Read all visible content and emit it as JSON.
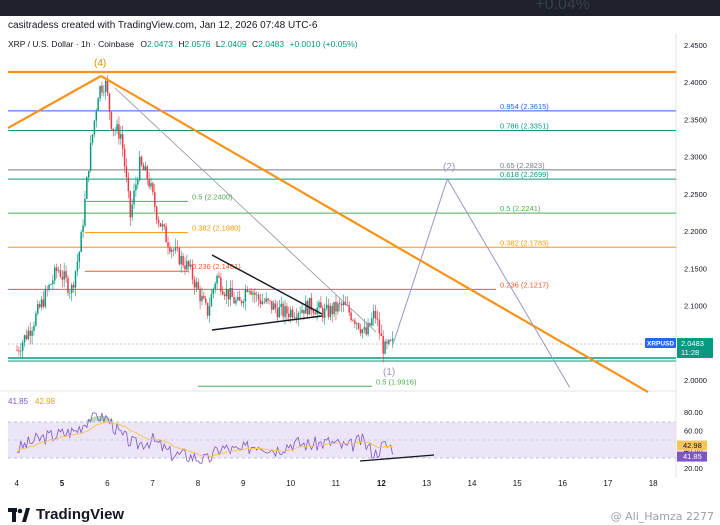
{
  "topbar_ghost_text": "+0.04%",
  "credit": "casitradess created with TradingView.com, Jan 12, 2026 07:48 UTC-6",
  "legend": {
    "symbol": "XRP / U.S. Dollar · 1h · Coinbase",
    "open_label": "O",
    "open": "2.0473",
    "high_label": "H",
    "high": "2.0576",
    "low_label": "L",
    "low": "2.0409",
    "close_label": "C",
    "close": "2.0483",
    "change": "+0.0010 (+0.05%)"
  },
  "price_axis": {
    "ticks": [
      "2.4500",
      "2.4000",
      "2.3500",
      "2.3000",
      "2.2500",
      "2.2000",
      "2.1500",
      "2.1000",
      "2.0500",
      "2.0000"
    ]
  },
  "rsi_axis": {
    "ticks": [
      "80.00",
      "60.00",
      "40.00",
      "20.00"
    ]
  },
  "time_axis": {
    "ticks": [
      "4",
      "5",
      "6",
      "7",
      "8",
      "9",
      "10",
      "11",
      "12",
      "13",
      "14",
      "15",
      "16",
      "17",
      "18"
    ]
  },
  "price_tag": {
    "symbol": "XRPUSD",
    "price": "2.0483",
    "countdown": "11:28"
  },
  "rsi": {
    "value_label": "41.85",
    "ma_label": "42.98",
    "value": 41.85,
    "ma": 42.98
  },
  "annotations": {
    "wave4": "(4)",
    "wave2": "(2)",
    "wave1": "(1)"
  },
  "fib_levels": [
    {
      "label": "0.854 (2.3615)",
      "price": 2.3615,
      "color": "#2962ff"
    },
    {
      "label": "0.786 (2.3351)",
      "price": 2.3351,
      "color": "#089981"
    },
    {
      "label": "0.65 (2.2823)",
      "price": 2.2823,
      "color": "#787b86"
    },
    {
      "label": "0.618 (2.2699)",
      "price": 2.2699,
      "color": "#089981"
    },
    {
      "label": "0.5 (2.2241)",
      "price": 2.2241,
      "color": "#4caf50"
    },
    {
      "label": "0.382 (2.1783)",
      "price": 2.1783,
      "color": "#ff9800"
    },
    {
      "label": "0.236 (2.1217)",
      "price": 2.1217,
      "color": "#ff5722"
    },
    {
      "label": "0.5 (2.2400)",
      "price": 2.24,
      "color": "#4caf50"
    },
    {
      "label": "0.382 (2.1980)",
      "price": 2.198,
      "color": "#ff9800"
    },
    {
      "label": "0.236 (2.1461)",
      "price": 2.1461,
      "color": "#ff5722"
    },
    {
      "label": "0.5 (1.9916)",
      "price": 1.9916,
      "color": "#4caf50"
    }
  ],
  "colors": {
    "up": "#089981",
    "down": "#f23645",
    "trend": "#f7931a",
    "projection": "#9b94c8",
    "rsi_line": "#7e57c2",
    "rsi_ma": "#f7c55a",
    "rsi_band": "#ece5f8"
  },
  "chart_data": {
    "type": "candlestick",
    "title": "XRP / U.S. Dollar · 1h · Coinbase",
    "ylim": [
      1.97,
      2.46
    ],
    "x": [
      "4",
      "5",
      "6",
      "7",
      "8",
      "9",
      "10",
      "11",
      "12",
      "13",
      "14",
      "15",
      "16",
      "17",
      "18"
    ],
    "close_series_approx": [
      [
        4.0,
        2.04
      ],
      [
        4.3,
        2.07
      ],
      [
        4.6,
        2.11
      ],
      [
        4.9,
        2.15
      ],
      [
        5.2,
        2.12
      ],
      [
        5.4,
        2.18
      ],
      [
        5.6,
        2.3
      ],
      [
        5.8,
        2.39
      ],
      [
        5.95,
        2.4
      ],
      [
        6.1,
        2.34
      ],
      [
        6.3,
        2.33
      ],
      [
        6.5,
        2.22
      ],
      [
        6.7,
        2.29
      ],
      [
        6.9,
        2.27
      ],
      [
        7.1,
        2.22
      ],
      [
        7.3,
        2.19
      ],
      [
        7.5,
        2.17
      ],
      [
        7.8,
        2.15
      ],
      [
        8.0,
        2.12
      ],
      [
        8.2,
        2.09
      ],
      [
        8.4,
        2.14
      ],
      [
        8.6,
        2.12
      ],
      [
        8.9,
        2.1
      ],
      [
        9.1,
        2.13
      ],
      [
        9.3,
        2.11
      ],
      [
        9.6,
        2.1
      ],
      [
        9.9,
        2.09
      ],
      [
        10.2,
        2.095
      ],
      [
        10.5,
        2.1
      ],
      [
        10.8,
        2.09
      ],
      [
        11.2,
        2.1
      ],
      [
        11.5,
        2.08
      ],
      [
        11.7,
        2.06
      ],
      [
        11.9,
        2.09
      ],
      [
        12.1,
        2.04
      ],
      [
        12.3,
        2.0483
      ]
    ],
    "wave_projection": [
      [
        12.3,
        2.0483
      ],
      [
        13.5,
        2.27
      ],
      [
        16.2,
        1.99
      ]
    ],
    "rsi_series_approx": [
      [
        4.0,
        40
      ],
      [
        4.4,
        50
      ],
      [
        4.8,
        55
      ],
      [
        5.3,
        60
      ],
      [
        5.7,
        78
      ],
      [
        6.0,
        73
      ],
      [
        6.3,
        55
      ],
      [
        6.6,
        45
      ],
      [
        7.0,
        50
      ],
      [
        7.4,
        35
      ],
      [
        7.8,
        33
      ],
      [
        8.2,
        28
      ],
      [
        8.5,
        42
      ],
      [
        8.9,
        38
      ],
      [
        9.3,
        46
      ],
      [
        9.7,
        40
      ],
      [
        10.1,
        47
      ],
      [
        10.5,
        45
      ],
      [
        10.9,
        48
      ],
      [
        11.3,
        42
      ],
      [
        11.6,
        50
      ],
      [
        11.9,
        35
      ],
      [
        12.1,
        45
      ],
      [
        12.3,
        41.85
      ]
    ]
  }
}
